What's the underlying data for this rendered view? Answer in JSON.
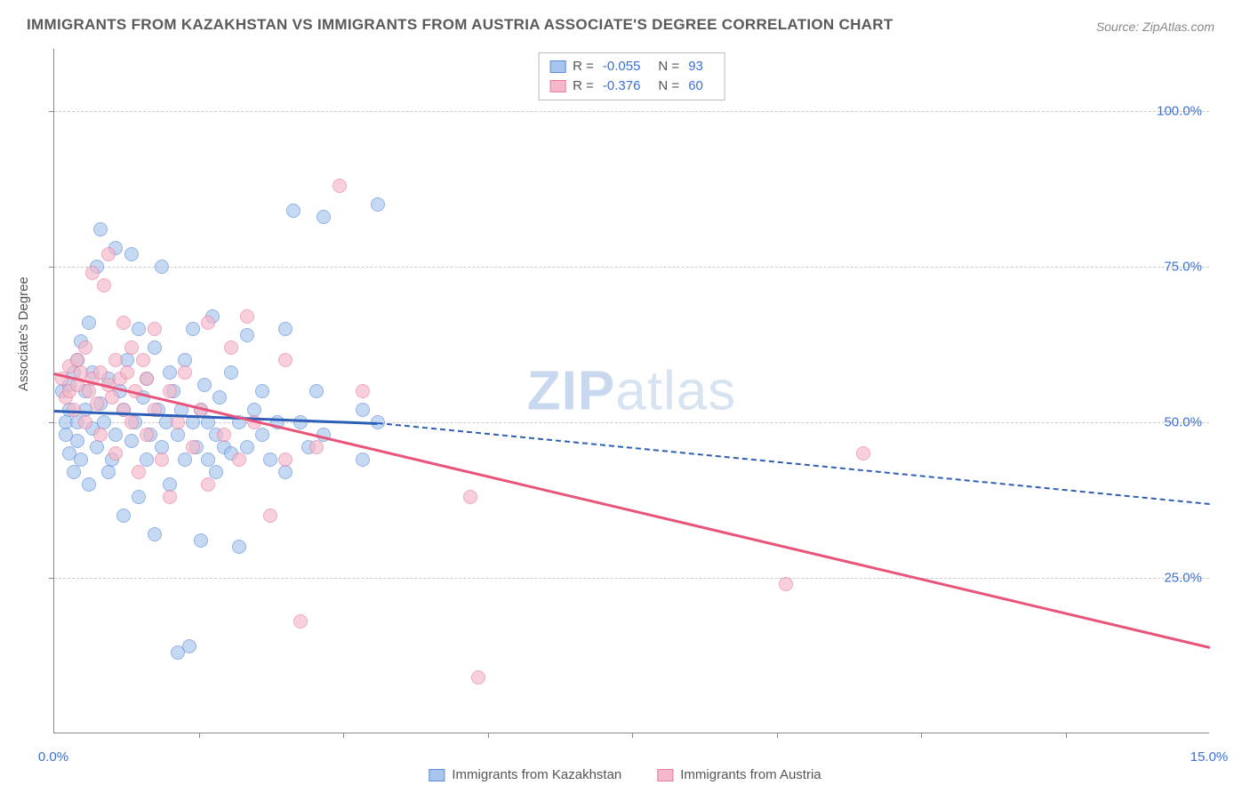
{
  "title": "IMMIGRANTS FROM KAZAKHSTAN VS IMMIGRANTS FROM AUSTRIA ASSOCIATE'S DEGREE CORRELATION CHART",
  "source": "Source: ZipAtlas.com",
  "watermark_bold": "ZIP",
  "watermark_light": "atlas",
  "chart": {
    "type": "scatter",
    "xlim": [
      0,
      15
    ],
    "ylim": [
      0,
      110
    ],
    "xlabel": "",
    "ylabel": "Associate's Degree",
    "xticks": [
      0,
      15
    ],
    "xtick_labels": [
      "0.0%",
      "15.0%"
    ],
    "xtick_minor": [
      1.88,
      3.75,
      5.63,
      7.5,
      9.38,
      11.25,
      13.13
    ],
    "yticks": [
      25,
      50,
      75,
      100
    ],
    "ytick_labels": [
      "25.0%",
      "50.0%",
      "75.0%",
      "100.0%"
    ],
    "grid_color": "#cccccc",
    "background_color": "#ffffff",
    "series": [
      {
        "name": "Immigrants from Kazakhstan",
        "fill": "#a8c5ed",
        "stroke": "#5a8cd8",
        "line_color": "#2e5fb8",
        "R": "-0.055",
        "N": "93",
        "trend": {
          "x1": 0,
          "y1": 52,
          "x2": 4.2,
          "y2": 50,
          "x2_dash": 15,
          "y2_dash": 37
        },
        "points": [
          [
            0.1,
            55
          ],
          [
            0.15,
            50
          ],
          [
            0.15,
            48
          ],
          [
            0.2,
            52
          ],
          [
            0.2,
            56
          ],
          [
            0.2,
            45
          ],
          [
            0.25,
            58
          ],
          [
            0.25,
            42
          ],
          [
            0.3,
            60
          ],
          [
            0.3,
            50
          ],
          [
            0.3,
            47
          ],
          [
            0.35,
            63
          ],
          [
            0.35,
            44
          ],
          [
            0.4,
            55
          ],
          [
            0.4,
            52
          ],
          [
            0.45,
            66
          ],
          [
            0.45,
            40
          ],
          [
            0.5,
            49
          ],
          [
            0.5,
            58
          ],
          [
            0.55,
            75
          ],
          [
            0.55,
            46
          ],
          [
            0.6,
            53
          ],
          [
            0.6,
            81
          ],
          [
            0.65,
            50
          ],
          [
            0.7,
            42
          ],
          [
            0.7,
            57
          ],
          [
            0.75,
            44
          ],
          [
            0.8,
            48
          ],
          [
            0.8,
            78
          ],
          [
            0.85,
            55
          ],
          [
            0.9,
            35
          ],
          [
            0.9,
            52
          ],
          [
            0.95,
            60
          ],
          [
            1.0,
            47
          ],
          [
            1.0,
            77
          ],
          [
            1.05,
            50
          ],
          [
            1.1,
            38
          ],
          [
            1.1,
            65
          ],
          [
            1.15,
            54
          ],
          [
            1.2,
            44
          ],
          [
            1.2,
            57
          ],
          [
            1.25,
            48
          ],
          [
            1.3,
            32
          ],
          [
            1.3,
            62
          ],
          [
            1.35,
            52
          ],
          [
            1.4,
            75
          ],
          [
            1.4,
            46
          ],
          [
            1.45,
            50
          ],
          [
            1.5,
            40
          ],
          [
            1.5,
            58
          ],
          [
            1.55,
            55
          ],
          [
            1.6,
            48
          ],
          [
            1.6,
            13
          ],
          [
            1.65,
            52
          ],
          [
            1.7,
            44
          ],
          [
            1.7,
            60
          ],
          [
            1.75,
            14
          ],
          [
            1.8,
            50
          ],
          [
            1.8,
            65
          ],
          [
            1.85,
            46
          ],
          [
            1.9,
            52
          ],
          [
            1.9,
            31
          ],
          [
            1.95,
            56
          ],
          [
            2.0,
            44
          ],
          [
            2.0,
            50
          ],
          [
            2.05,
            67
          ],
          [
            2.1,
            48
          ],
          [
            2.1,
            42
          ],
          [
            2.15,
            54
          ],
          [
            2.2,
            46
          ],
          [
            2.3,
            45
          ],
          [
            2.3,
            58
          ],
          [
            2.4,
            50
          ],
          [
            2.4,
            30
          ],
          [
            2.5,
            64
          ],
          [
            2.5,
            46
          ],
          [
            2.6,
            52
          ],
          [
            2.7,
            48
          ],
          [
            2.7,
            55
          ],
          [
            2.8,
            44
          ],
          [
            2.9,
            50
          ],
          [
            3.0,
            65
          ],
          [
            3.0,
            42
          ],
          [
            3.1,
            84
          ],
          [
            3.2,
            50
          ],
          [
            3.3,
            46
          ],
          [
            3.4,
            55
          ],
          [
            3.5,
            48
          ],
          [
            3.5,
            83
          ],
          [
            4.0,
            52
          ],
          [
            4.0,
            44
          ],
          [
            4.2,
            50
          ],
          [
            4.2,
            85
          ]
        ]
      },
      {
        "name": "Immigrants from Austria",
        "fill": "#f4b8c8",
        "stroke": "#e87ca0",
        "line_color": "#e8547a",
        "R": "-0.376",
        "N": "60",
        "trend": {
          "x1": 0,
          "y1": 58,
          "x2": 15,
          "y2": 14
        },
        "points": [
          [
            0.1,
            57
          ],
          [
            0.15,
            54
          ],
          [
            0.2,
            59
          ],
          [
            0.2,
            55
          ],
          [
            0.25,
            52
          ],
          [
            0.3,
            60
          ],
          [
            0.3,
            56
          ],
          [
            0.35,
            58
          ],
          [
            0.4,
            50
          ],
          [
            0.4,
            62
          ],
          [
            0.45,
            55
          ],
          [
            0.5,
            57
          ],
          [
            0.5,
            74
          ],
          [
            0.55,
            53
          ],
          [
            0.6,
            58
          ],
          [
            0.6,
            48
          ],
          [
            0.65,
            72
          ],
          [
            0.7,
            56
          ],
          [
            0.7,
            77
          ],
          [
            0.75,
            54
          ],
          [
            0.8,
            60
          ],
          [
            0.8,
            45
          ],
          [
            0.85,
            57
          ],
          [
            0.9,
            66
          ],
          [
            0.9,
            52
          ],
          [
            0.95,
            58
          ],
          [
            1.0,
            50
          ],
          [
            1.0,
            62
          ],
          [
            1.05,
            55
          ],
          [
            1.1,
            42
          ],
          [
            1.15,
            60
          ],
          [
            1.2,
            48
          ],
          [
            1.2,
            57
          ],
          [
            1.3,
            52
          ],
          [
            1.3,
            65
          ],
          [
            1.4,
            44
          ],
          [
            1.5,
            55
          ],
          [
            1.5,
            38
          ],
          [
            1.6,
            50
          ],
          [
            1.7,
            58
          ],
          [
            1.8,
            46
          ],
          [
            1.9,
            52
          ],
          [
            2.0,
            40
          ],
          [
            2.0,
            66
          ],
          [
            2.2,
            48
          ],
          [
            2.3,
            62
          ],
          [
            2.4,
            44
          ],
          [
            2.5,
            67
          ],
          [
            2.6,
            50
          ],
          [
            2.8,
            35
          ],
          [
            3.0,
            44
          ],
          [
            3.0,
            60
          ],
          [
            3.2,
            18
          ],
          [
            3.4,
            46
          ],
          [
            3.7,
            88
          ],
          [
            4.0,
            55
          ],
          [
            5.4,
            38
          ],
          [
            5.5,
            9
          ],
          [
            9.5,
            24
          ],
          [
            10.5,
            45
          ]
        ]
      }
    ]
  },
  "legend_bottom": [
    "Immigrants from Kazakhstan",
    "Immigrants from Austria"
  ]
}
